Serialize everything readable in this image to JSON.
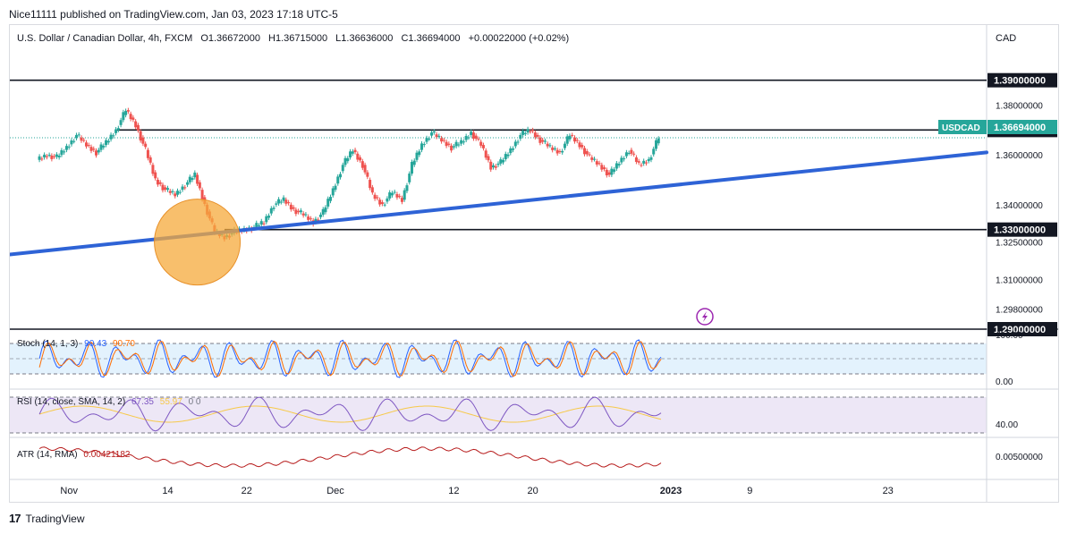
{
  "publisher": "Nice11111 published on TradingView.com, Jan 03, 2023 17:18 UTC-5",
  "branding": "TradingView",
  "chart_data": {
    "type": "candlestick",
    "header": {
      "symbol": "U.S. Dollar / Canadian Dollar, 4h, FXCM",
      "open": "O1.36672000",
      "high": "H1.36715000",
      "low": "L1.36636000",
      "close": "C1.36694000",
      "change": "+0.00022000 (+0.02%)"
    },
    "currency": "CAD",
    "ylim": [
      1.29,
      1.396
    ],
    "y_ticks": [
      "1.38000000",
      "1.36000000",
      "1.34000000",
      "1.32500000",
      "1.31000000",
      "1.29800000"
    ],
    "x_ticks": [
      {
        "label": "Nov",
        "x": 3
      },
      {
        "label": "14",
        "x": 13
      },
      {
        "label": "22",
        "x": 21
      },
      {
        "label": "Dec",
        "x": 30
      },
      {
        "label": "12",
        "x": 42
      },
      {
        "label": "20",
        "x": 50
      },
      {
        "label": "2023",
        "x": 64
      },
      {
        "label": "9",
        "x": 72
      },
      {
        "label": "23",
        "x": 86
      }
    ],
    "x_range": [
      -3,
      96
    ],
    "closes": [
      1.358,
      1.36,
      1.359,
      1.363,
      1.368,
      1.364,
      1.361,
      1.365,
      1.37,
      1.378,
      1.372,
      1.362,
      1.35,
      1.346,
      1.344,
      1.348,
      1.352,
      1.34,
      1.329,
      1.327,
      1.329,
      1.33,
      1.331,
      1.333,
      1.34,
      1.342,
      1.338,
      1.336,
      1.333,
      1.337,
      1.346,
      1.356,
      1.362,
      1.356,
      1.344,
      1.34,
      1.345,
      1.342,
      1.356,
      1.364,
      1.369,
      1.366,
      1.363,
      1.365,
      1.369,
      1.364,
      1.355,
      1.357,
      1.362,
      1.368,
      1.37,
      1.366,
      1.363,
      1.361,
      1.368,
      1.364,
      1.359,
      1.356,
      1.352,
      1.357,
      1.362,
      1.356,
      1.358,
      1.3669
    ],
    "horizontal_levels": [
      {
        "label": "1.39000000",
        "value": 1.39
      },
      {
        "label": "1.37000000",
        "value": 1.37
      },
      {
        "label": "1.33000000",
        "value": 1.33
      },
      {
        "label": "1.29000000",
        "value": 1.29
      }
    ],
    "price_tag": {
      "symbol": "USDCAD",
      "value": "1.36694000"
    },
    "trendline": {
      "from": [
        -3,
        1.32
      ],
      "to": [
        96,
        1.361
      ]
    },
    "highlight_circle": {
      "x": 16,
      "y": 1.325
    },
    "indicators": {
      "stoch": {
        "label": "Stoch (14, 1, 3)",
        "k": "90.43",
        "d": "90.70",
        "levels": [
          "100.00",
          "0.00"
        ]
      },
      "rsi": {
        "label": "RSI (14, close, SMA, 14, 2)",
        "value": "67.35",
        "sma": "55.97",
        "extra": "0 0",
        "level": "40.00"
      },
      "atr": {
        "label": "ATR (14, RMA)",
        "value": "0.00421182",
        "level": "0.00500000"
      }
    }
  },
  "colors": {
    "up": "#26a69a",
    "down": "#ef5350",
    "trend": "#2e63d6",
    "circle": "#f6a93b",
    "tag": "#26a69a",
    "stoch_k": "#2962ff",
    "stoch_d": "#ff6d00",
    "rsi": "#7e57c2",
    "rsi_sma": "#f7c948",
    "atr": "#b71c1c"
  }
}
